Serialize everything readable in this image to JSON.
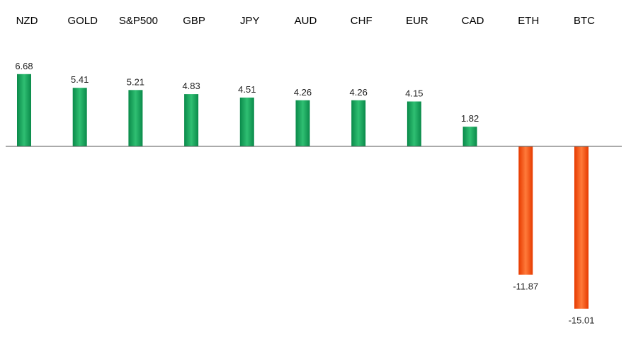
{
  "chart_data": {
    "type": "bar",
    "categories": [
      "NZD",
      "GOLD",
      "S&P500",
      "GBP",
      "JPY",
      "AUD",
      "CHF",
      "EUR",
      "CAD",
      "ETH",
      "BTC"
    ],
    "values": [
      6.68,
      5.41,
      5.21,
      4.83,
      4.51,
      4.26,
      4.26,
      4.15,
      1.82,
      -11.87,
      -15.01
    ],
    "value_labels": [
      "6.68",
      "5.41",
      "5.21",
      "4.83",
      "4.51",
      "4.26",
      "4.26",
      "4.15",
      "1.82",
      "-11.87",
      "-15.01"
    ],
    "ylim": [
      -15.01,
      6.68
    ],
    "grid": false,
    "legend": "none",
    "category_label_position": "top",
    "colors": {
      "positive_light": "#2fbf72",
      "positive": "#0aa35a",
      "positive_dark": "#0a8a4a",
      "negative_light": "#ff7a3a",
      "negative": "#ff4a10",
      "negative_dark": "#e63a00",
      "axis": "#555555"
    }
  }
}
